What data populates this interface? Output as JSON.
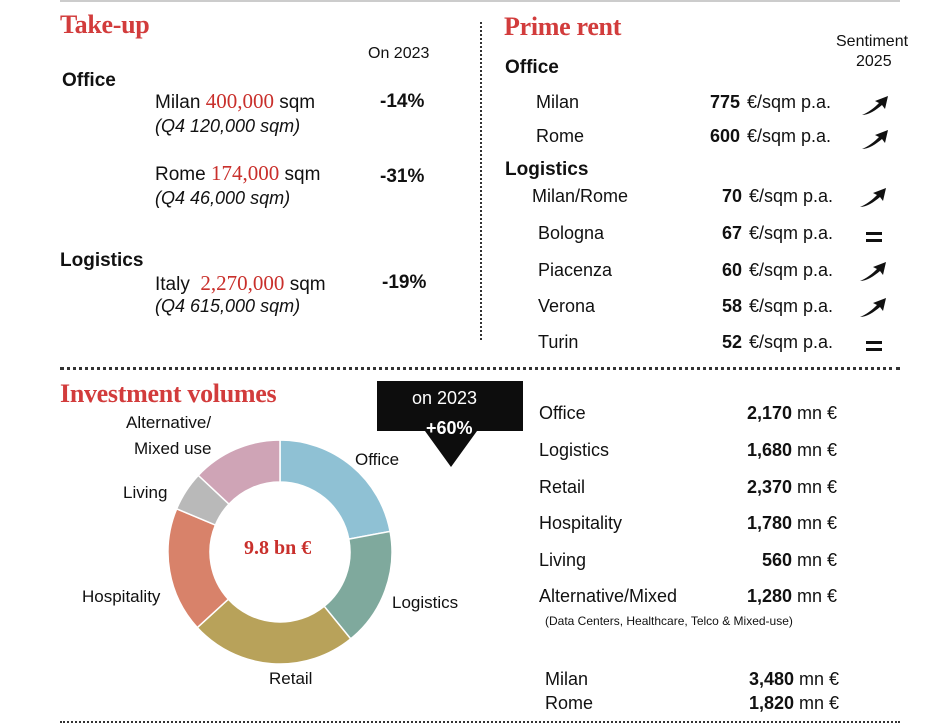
{
  "takeup": {
    "title": "Take-up",
    "on_header": "On 2023",
    "office_label": "Office",
    "milan": {
      "city": "Milan",
      "value": "400,000",
      "unit": "sqm",
      "q4": "(Q4 120,000 sqm)",
      "change": "-14%"
    },
    "rome": {
      "city": "Rome",
      "value": "174,000",
      "unit": "sqm",
      "q4": "(Q4 46,000 sqm)",
      "change": "-31%"
    },
    "logistics_label": "Logistics",
    "italy": {
      "city": "Italy",
      "value": "2,270,000",
      "unit": "sqm",
      "q4": "(Q4 615,000 sqm)",
      "change": "-19%"
    }
  },
  "prime_rent": {
    "title": "Prime rent",
    "sentiment_l1": "Sentiment",
    "sentiment_l2": "2025",
    "office_label": "Office",
    "logistics_label": "Logistics",
    "unit": "€/sqm p.a.",
    "office_rows": [
      {
        "city": "Milan",
        "value": "775",
        "sentiment": "up"
      },
      {
        "city": "Rome",
        "value": "600",
        "sentiment": "up"
      }
    ],
    "logistics_rows": [
      {
        "city": "Milan/Rome",
        "value": "70",
        "sentiment": "up"
      },
      {
        "city": "Bologna",
        "value": "67",
        "sentiment": "equal"
      },
      {
        "city": "Piacenza",
        "value": "60",
        "sentiment": "up"
      },
      {
        "city": "Verona",
        "value": "58",
        "sentiment": "up"
      },
      {
        "city": "Turin",
        "value": "52",
        "sentiment": "equal"
      }
    ]
  },
  "investment": {
    "title": "Investment volumes",
    "badge_l1": "on 2023",
    "badge_l2": "+60%",
    "center_label": "9.8 bn €",
    "segment_labels": {
      "office": "Office",
      "logistics": "Logistics",
      "retail": "Retail",
      "hospitality": "Hospitality",
      "living": "Living",
      "alt_l1": "Alternative/",
      "alt_l2": "Mixed use"
    },
    "unit": "mn €",
    "rows": [
      {
        "label": "Office",
        "value": "2,170"
      },
      {
        "label": "Logistics",
        "value": "1,680"
      },
      {
        "label": "Retail",
        "value": "2,370"
      },
      {
        "label": "Hospitality",
        "value": "1,780"
      },
      {
        "label": "Living",
        "value": "560"
      },
      {
        "label": "Alternative/Mixed",
        "value": "1,280"
      }
    ],
    "note": "(Data Centers, Healthcare, Telco & Mixed-use)",
    "city_rows": [
      {
        "label": "Milan",
        "value": "3,480"
      },
      {
        "label": "Rome",
        "value": "1,820"
      }
    ],
    "donut": [
      {
        "name": "Office",
        "value": 2170,
        "color": "#8fc1d4"
      },
      {
        "name": "Logistics",
        "value": 1680,
        "color": "#7fa99d"
      },
      {
        "name": "Retail",
        "value": 2370,
        "color": "#b8a25a"
      },
      {
        "name": "Hospitality",
        "value": 1780,
        "color": "#d8826a"
      },
      {
        "name": "Living",
        "value": 560,
        "color": "#b9b9b9"
      },
      {
        "name": "Alternative/Mixed",
        "value": 1280,
        "color": "#cfa4b6"
      }
    ]
  }
}
